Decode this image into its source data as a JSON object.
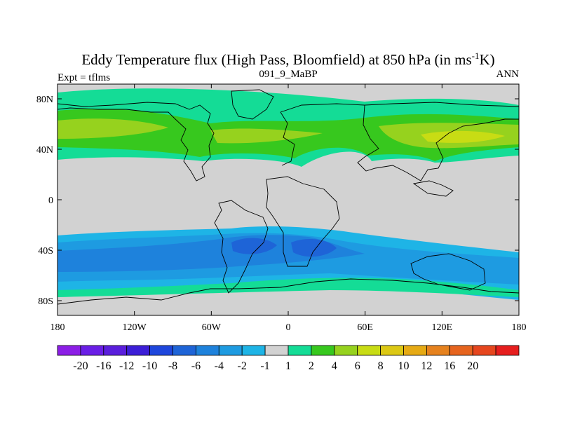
{
  "title_main": "Eddy Temperature flux (High Pass, Bloomfield) at 850 hPa (in ms",
  "title_exp": "-1",
  "title_end": "K)",
  "left_label": "Expt = tflms",
  "center_label": "091_9_MaBP",
  "right_label": "ANN",
  "lat_ticks": [
    {
      "label": "80N",
      "lat": 80
    },
    {
      "label": "40N",
      "lat": 40
    },
    {
      "label": "0",
      "lat": 0
    },
    {
      "label": "40S",
      "lat": -40
    },
    {
      "label": "80S",
      "lat": -80
    }
  ],
  "lon_ticks": [
    {
      "label": "180",
      "lon": -180
    },
    {
      "label": "120W",
      "lon": -120
    },
    {
      "label": "60W",
      "lon": -60
    },
    {
      "label": "0",
      "lon": 0
    },
    {
      "label": "60E",
      "lon": 60
    },
    {
      "label": "120E",
      "lon": 120
    },
    {
      "label": "180",
      "lon": 180
    }
  ],
  "colorbar": {
    "colors": [
      "#8c1ee6",
      "#6a1ee6",
      "#5a1edc",
      "#3c1ed7",
      "#1e46dc",
      "#1e64d7",
      "#1e82dc",
      "#1e9be1",
      "#1eb4e6",
      "#d2d2d2",
      "#14dc96",
      "#37c81e",
      "#96d21e",
      "#c8dc14",
      "#dcc814",
      "#e6aa14",
      "#e6821e",
      "#e6641e",
      "#e6461e",
      "#e61e1e"
    ],
    "labels": [
      "-20",
      "-16",
      "-12",
      "-10",
      "-8",
      "-6",
      "-4",
      "-2",
      "-1",
      "1",
      "2",
      "4",
      "6",
      "8",
      "10",
      "12",
      "16",
      "20"
    ]
  },
  "palette": {
    "land_neutral": "#d2d2d2",
    "green_light": "#14dc96",
    "green": "#37c81e",
    "yellow_green": "#96d21e",
    "yellow": "#c8dc14",
    "cyan": "#1eb4e6",
    "blue_light": "#1e9be1",
    "blue": "#1e82dc",
    "blue_dark": "#1e64d7"
  }
}
